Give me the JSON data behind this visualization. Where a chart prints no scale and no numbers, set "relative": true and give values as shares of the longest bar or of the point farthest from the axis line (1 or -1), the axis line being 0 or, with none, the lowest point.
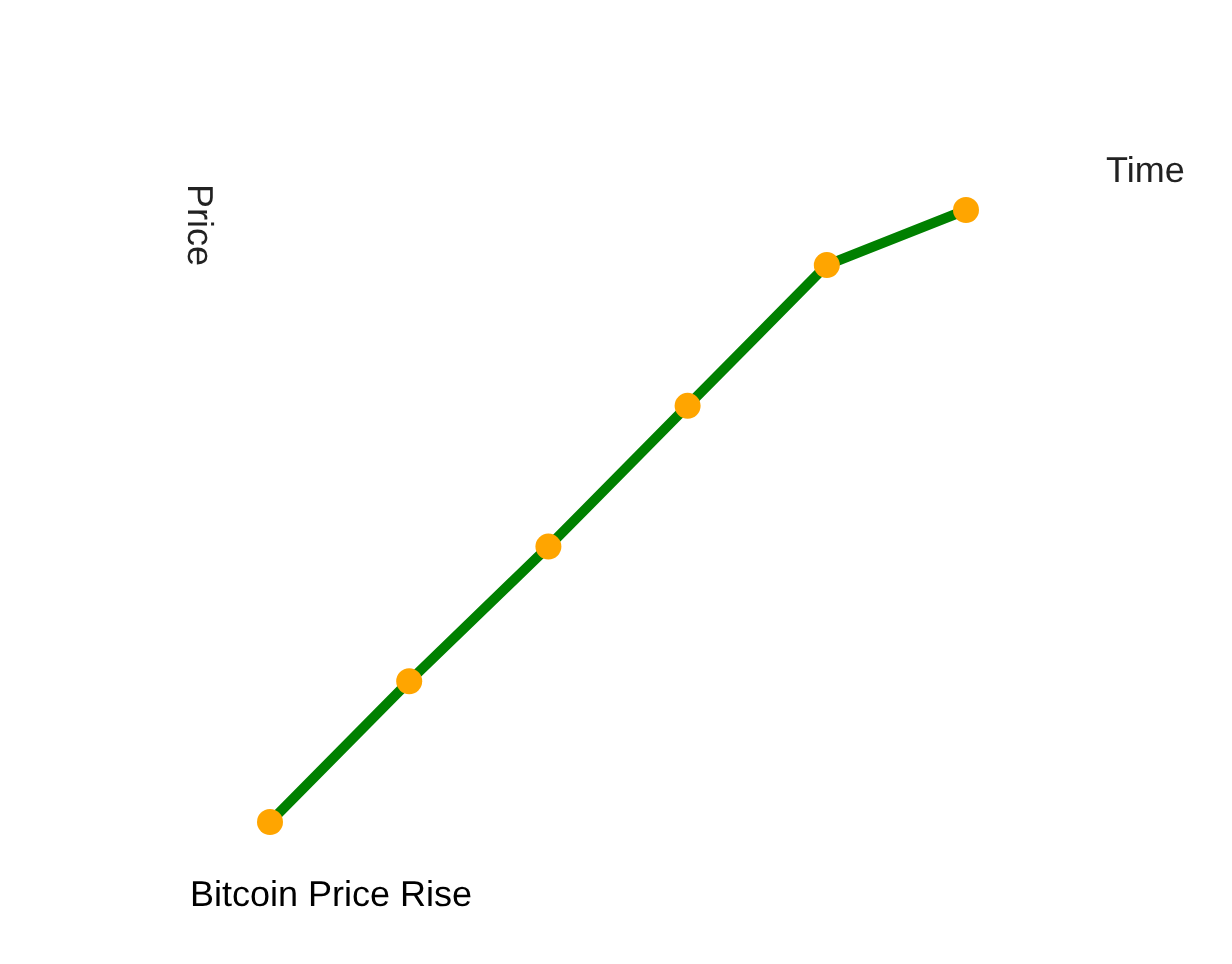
{
  "chart_data": {
    "type": "line",
    "title": "Bitcoin Price Rise",
    "xlabel": "Time",
    "ylabel": "Price",
    "relative": true,
    "categories": [
      null,
      null,
      null,
      null,
      null,
      null
    ],
    "series": [
      {
        "color": "#008000",
        "colors": [
          "#ffa500",
          "#ffa500",
          "#ffa500",
          "#ffa500",
          "#ffa500",
          "#ffa500"
        ],
        "values": [
          0,
          0.23,
          0.45,
          0.68,
          0.91,
          1
        ]
      }
    ],
    "marker": "circle",
    "line_style": "solid",
    "grid": false,
    "legend": false
  }
}
